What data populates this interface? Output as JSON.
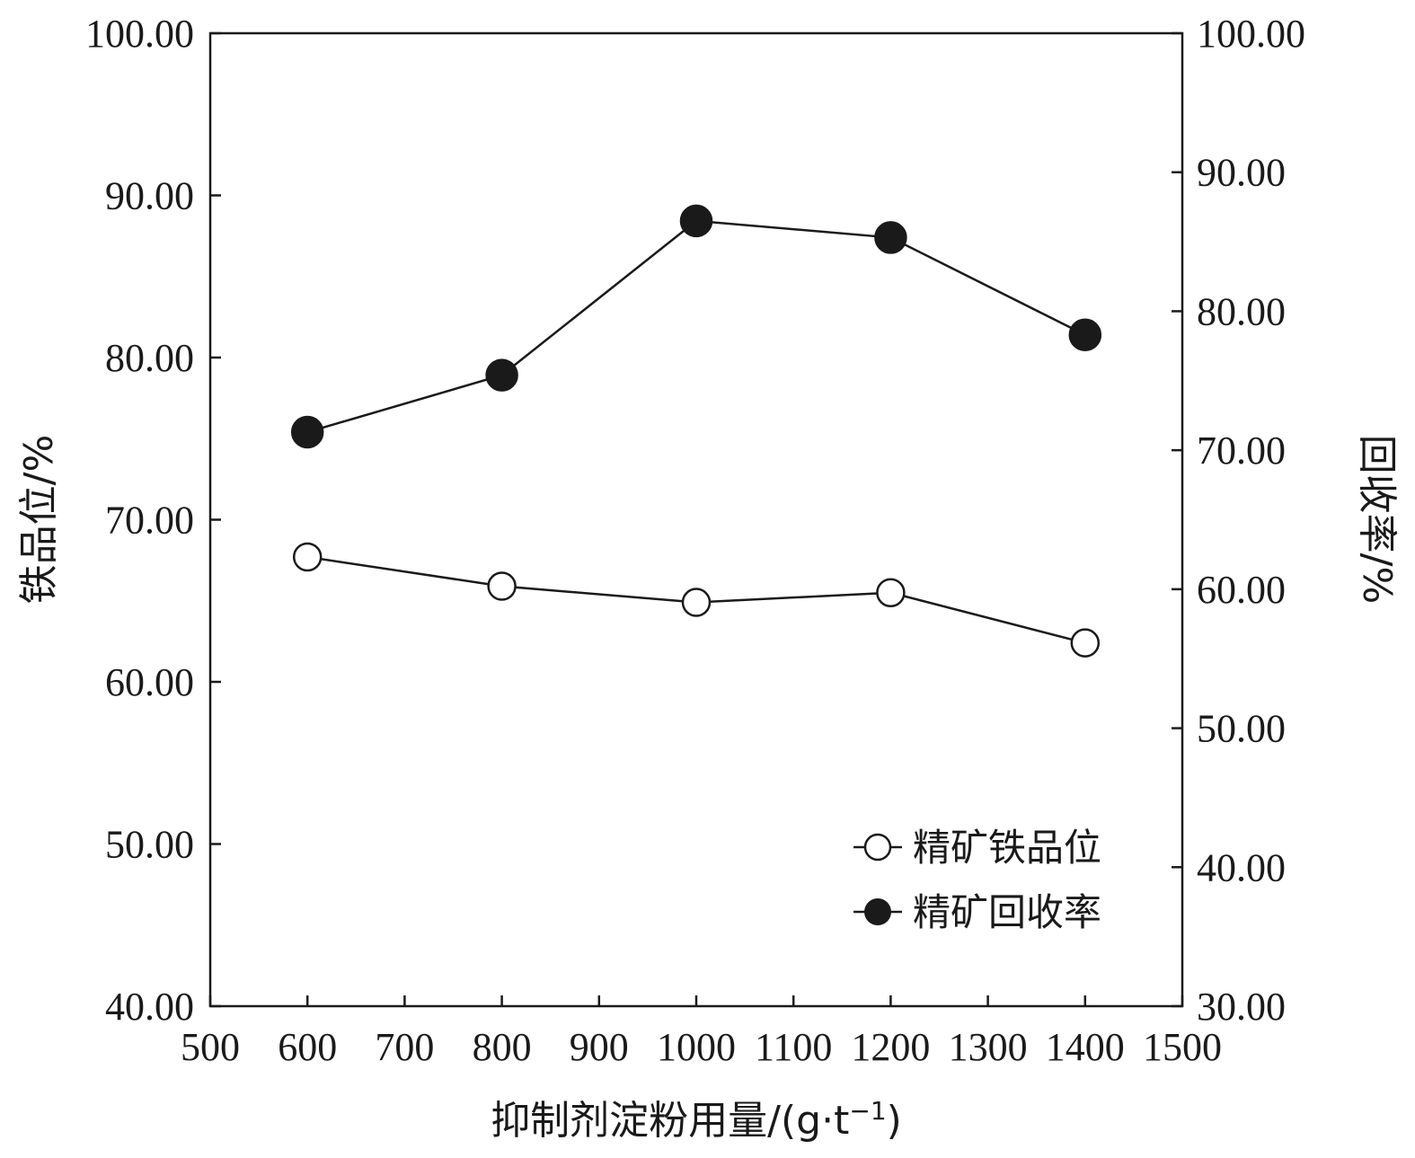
{
  "chart_data": {
    "type": "line",
    "title": "",
    "xlabel": "抑制剂淀粉用量/(g·t",
    "xlabel_sup": "−1",
    "xlabel_close": ")",
    "ylabel_left": "铁品位/%",
    "ylabel_right": "回收率/%",
    "xlim": [
      500,
      1500
    ],
    "ylim_left": [
      40,
      100
    ],
    "ylim_right": [
      30,
      100
    ],
    "x_ticks": [
      500,
      600,
      700,
      800,
      900,
      1000,
      1100,
      1200,
      1300,
      1400,
      1500
    ],
    "x_tick_labels": [
      "500",
      "600",
      "700",
      "800",
      "900",
      "1000",
      "1100",
      "1200",
      "1300",
      "1400",
      "1500"
    ],
    "y_left_ticks": [
      40,
      50,
      60,
      70,
      80,
      90,
      100
    ],
    "y_left_tick_labels": [
      "40.00",
      "50.00",
      "60.00",
      "70.00",
      "80.00",
      "90.00",
      "100.00"
    ],
    "y_right_ticks": [
      30,
      40,
      50,
      60,
      70,
      80,
      90,
      100
    ],
    "y_right_tick_labels": [
      "30.00",
      "40.00",
      "50.00",
      "60.00",
      "70.00",
      "80.00",
      "90.00",
      "100.00"
    ],
    "grid": false,
    "legend_position": "bottom-right",
    "x": [
      600,
      800,
      1000,
      1200,
      1400
    ],
    "series": [
      {
        "name": "精矿铁品位",
        "axis": "left",
        "marker": "open-circle",
        "values": [
          67.7,
          65.9,
          64.9,
          65.5,
          62.4
        ]
      },
      {
        "name": "精矿回收率",
        "axis": "right",
        "marker": "filled-circle",
        "values": [
          71.3,
          75.4,
          86.5,
          85.3,
          78.3
        ]
      }
    ]
  }
}
